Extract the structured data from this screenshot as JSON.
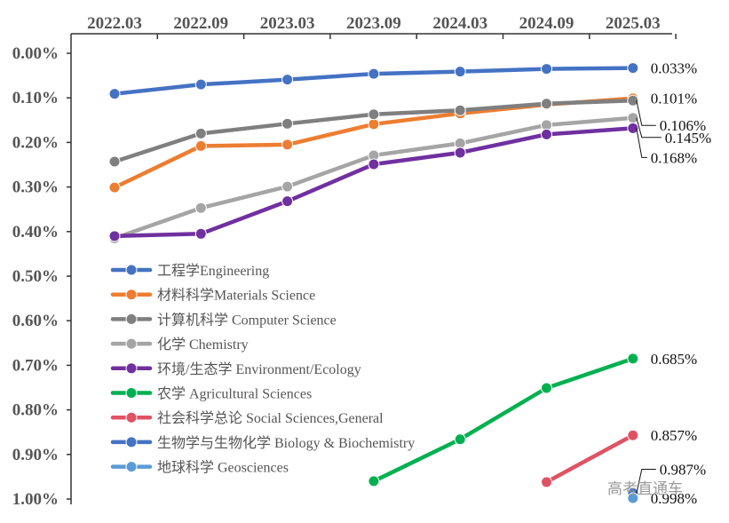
{
  "watermark": "高考直通车",
  "chart_data": {
    "type": "line",
    "x": [
      "2022.03",
      "2022.09",
      "2023.03",
      "2023.09",
      "2024.03",
      "2024.09",
      "2025.03"
    ],
    "ylim": [
      1.0,
      0.0
    ],
    "yticks": [
      "0.00%",
      "0.10%",
      "0.20%",
      "0.30%",
      "0.40%",
      "0.50%",
      "0.60%",
      "0.70%",
      "0.80%",
      "0.90%",
      "1.00%"
    ],
    "grid": false,
    "legend_position": "lower-left",
    "series": [
      {
        "name": "工程学Engineering",
        "color": "#4472C4",
        "values": [
          0.091,
          0.07,
          0.059,
          0.046,
          0.041,
          0.035,
          0.033
        ],
        "end_label": "0.033%"
      },
      {
        "name": "材料科学Materials Science",
        "color": "#ED7D31",
        "values": [
          0.301,
          0.208,
          0.205,
          0.159,
          0.135,
          0.115,
          0.101
        ],
        "end_label": "0.101%"
      },
      {
        "name": "计算机科学 Computer Science",
        "color": "#7F7F7F",
        "values": [
          0.243,
          0.18,
          0.158,
          0.137,
          0.128,
          0.113,
          0.106
        ],
        "end_label": "0.106%"
      },
      {
        "name": "化学 Chemistry",
        "color": "#A5A5A5",
        "values": [
          0.415,
          0.347,
          0.299,
          0.229,
          0.202,
          0.161,
          0.145
        ],
        "end_label": "0.145%"
      },
      {
        "name": "环境/生态学 Environment/Ecology",
        "color": "#7030A0",
        "values": [
          0.41,
          0.405,
          0.332,
          0.249,
          0.223,
          0.182,
          0.168
        ],
        "end_label": "0.168%"
      },
      {
        "name": "农学 Agricultural Sciences",
        "color": "#00B050",
        "values": [
          null,
          null,
          null,
          0.96,
          0.866,
          0.751,
          0.685
        ],
        "end_label": "0.685%"
      },
      {
        "name": "社会科学总论 Social Sciences,General",
        "color": "#E05263",
        "values": [
          null,
          null,
          null,
          null,
          null,
          0.962,
          0.857
        ],
        "end_label": "0.857%"
      },
      {
        "name": "生物学与生物化学 Biology & Biochemistry",
        "color": "#4472C4",
        "values": [
          null,
          null,
          null,
          null,
          null,
          null,
          0.987
        ],
        "end_label": "0.987%"
      },
      {
        "name": "地球科学 Geosciences",
        "color": "#5B9BD5",
        "values": [
          null,
          null,
          null,
          null,
          null,
          null,
          0.998
        ],
        "end_label": "0.998%"
      }
    ]
  }
}
